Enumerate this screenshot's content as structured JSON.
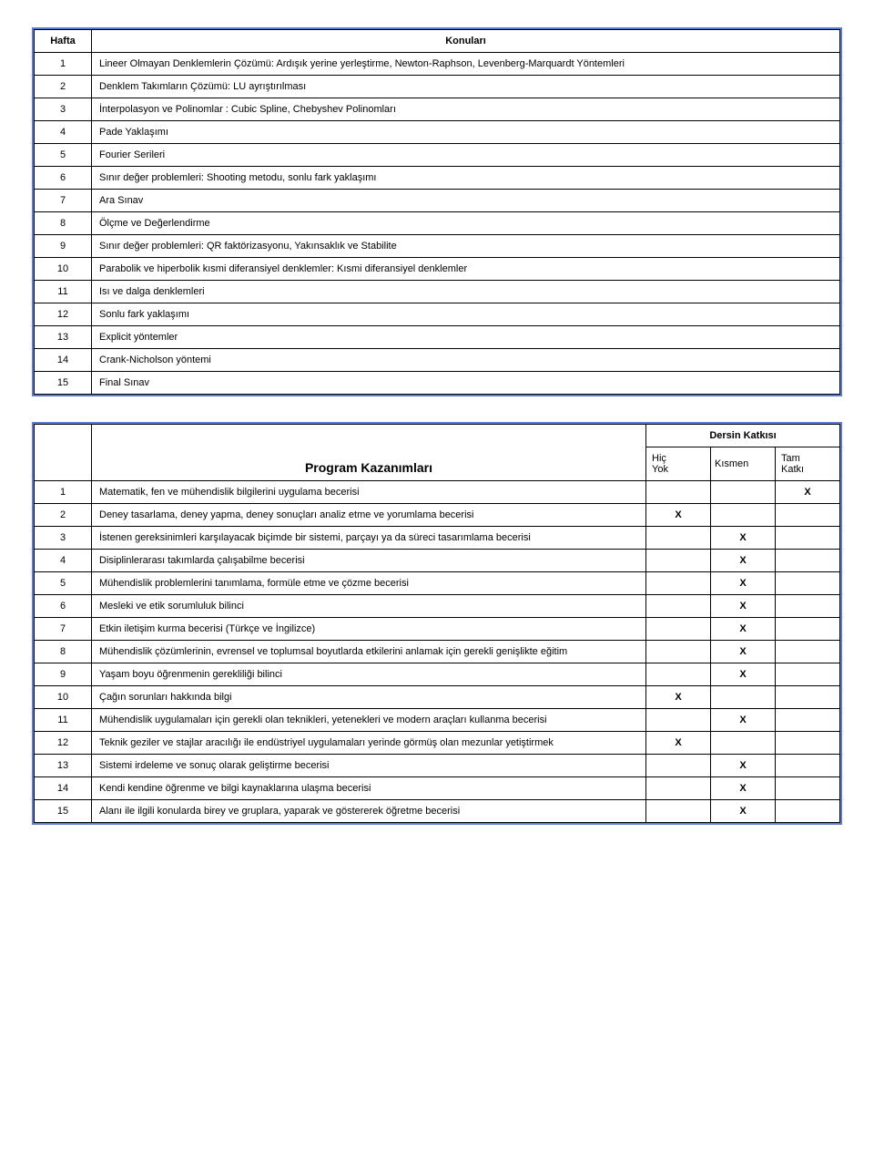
{
  "table1": {
    "border_color": "#5b7dd6",
    "header": {
      "col1": "Hafta",
      "col2": "Konuları"
    },
    "rows": [
      {
        "n": "1",
        "text": "Lineer Olmayan Denklemlerin Çözümü: Ardışık yerine yerleştirme, Newton-Raphson, Levenberg-Marquardt Yöntemleri"
      },
      {
        "n": "2",
        "text": "Denklem Takımların Çözümü: LU ayrıştırılması"
      },
      {
        "n": "3",
        "text": "İnterpolasyon ve Polinomlar : Cubic Spline, Chebyshev Polinomları"
      },
      {
        "n": "4",
        "text": "Pade Yaklaşımı"
      },
      {
        "n": "5",
        "text": "Fourier Serileri"
      },
      {
        "n": "6",
        "text": "Sınır değer problemleri: Shooting metodu, sonlu fark yaklaşımı"
      },
      {
        "n": "7",
        "text": "Ara Sınav"
      },
      {
        "n": "8",
        "text": "Ölçme ve Değerlendirme"
      },
      {
        "n": "9",
        "text": "Sınır değer problemleri: QR faktörizasyonu, Yakınsaklık ve Stabilite"
      },
      {
        "n": "10",
        "text": "Parabolik ve hiperbolik kısmi diferansiyel denklemler: Kısmi diferansiyel denklemler"
      },
      {
        "n": "11",
        "text": "Isı ve dalga denklemleri"
      },
      {
        "n": "12",
        "text": "Sonlu fark yaklaşımı"
      },
      {
        "n": "13",
        "text": "Explicit yöntemler"
      },
      {
        "n": "14",
        "text": "Crank-Nicholson yöntemi"
      },
      {
        "n": "15",
        "text": "Final Sınav"
      }
    ]
  },
  "table2": {
    "border_color": "#5b7dd6",
    "title": "Program Kazanımları",
    "group_header": "Dersin Katkısı",
    "cols": {
      "c1": "Hiç\nYok",
      "c2": "Kısmen",
      "c3": "Tam\nKatkı"
    },
    "mark": "X",
    "rows": [
      {
        "n": "1",
        "text": "Matematik, fen ve mühendislik bilgilerini uygulama becerisi",
        "x": [
          0,
          0,
          1
        ]
      },
      {
        "n": "2",
        "text": "Deney tasarlama, deney yapma, deney sonuçları analiz etme ve yorumlama becerisi",
        "x": [
          1,
          0,
          0
        ]
      },
      {
        "n": "3",
        "text": "İstenen gereksinimleri karşılayacak biçimde bir sistemi, parçayı ya da süreci tasarımlama becerisi",
        "x": [
          0,
          1,
          0
        ]
      },
      {
        "n": "4",
        "text": "Disiplinlerarası takımlarda çalışabilme becerisi",
        "x": [
          0,
          1,
          0
        ]
      },
      {
        "n": "5",
        "text": "Mühendislik problemlerini tanımlama, formüle etme ve çözme becerisi",
        "x": [
          0,
          1,
          0
        ]
      },
      {
        "n": "6",
        "text": "Mesleki ve etik sorumluluk bilinci",
        "x": [
          0,
          1,
          0
        ]
      },
      {
        "n": "7",
        "text": "Etkin iletişim kurma becerisi (Türkçe ve İngilizce)",
        "x": [
          0,
          1,
          0
        ]
      },
      {
        "n": "8",
        "text": "Mühendislik çözümlerinin, evrensel ve toplumsal boyutlarda etkilerini anlamak için gerekli genişlikte eğitim",
        "x": [
          0,
          1,
          0
        ]
      },
      {
        "n": "9",
        "text": "Yaşam boyu öğrenmenin gerekliliği bilinci",
        "x": [
          0,
          1,
          0
        ]
      },
      {
        "n": "10",
        "text": "Çağın sorunları hakkında bilgi",
        "x": [
          1,
          0,
          0
        ]
      },
      {
        "n": "11",
        "text": "Mühendislik uygulamaları için gerekli olan teknikleri, yetenekleri ve modern araçları kullanma becerisi",
        "x": [
          0,
          1,
          0
        ]
      },
      {
        "n": "12",
        "text": "Teknik geziler ve stajlar aracılığı ile endüstriyel uygulamaları yerinde görmüş olan mezunlar yetiştirmek",
        "x": [
          1,
          0,
          0
        ]
      },
      {
        "n": "13",
        "text": "Sistemi irdeleme ve sonuç olarak geliştirme becerisi",
        "x": [
          0,
          1,
          0
        ]
      },
      {
        "n": "14",
        "text": "Kendi kendine öğrenme ve bilgi kaynaklarına ulaşma becerisi",
        "x": [
          0,
          1,
          0
        ]
      },
      {
        "n": "15",
        "text": "Alanı ile ilgili konularda birey ve gruplara, yaparak ve göstererek öğretme becerisi",
        "x": [
          0,
          1,
          0
        ]
      }
    ]
  }
}
